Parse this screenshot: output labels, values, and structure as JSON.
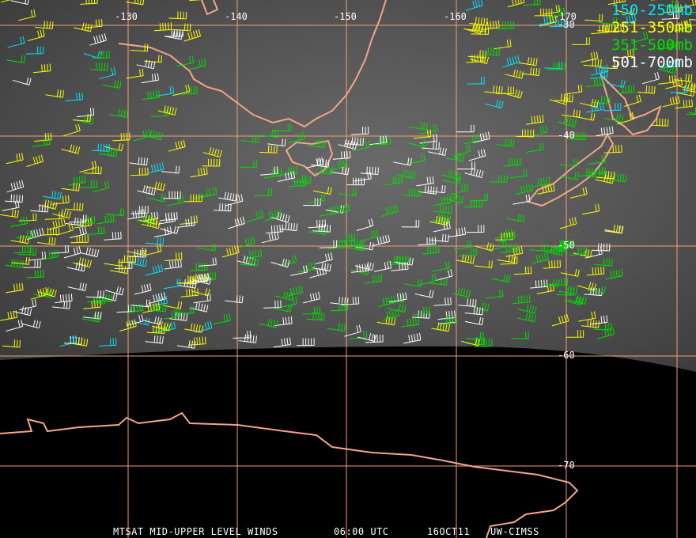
{
  "colors": {
    "grid": "#f0a078",
    "coast": "#f4a58a",
    "background_ocean": "#000000"
  },
  "legend": [
    {
      "label": "150-250mb",
      "color": "#00e5ff"
    },
    {
      "label": "251-350mb",
      "color": "#ffff00"
    },
    {
      "label": "351-500mb",
      "color": "#00e000"
    },
    {
      "label": "501-700mb",
      "color": "#ffffff"
    }
  ],
  "longitude_labels": [
    "-130",
    "-140",
    "-150",
    "-160",
    "-170"
  ],
  "latitude_labels": [
    "-30",
    "-40",
    "-50",
    "-60",
    "-70"
  ],
  "footer": {
    "product": "MTSAT MID-UPPER LEVEL WINDS",
    "time": "06:00 UTC",
    "date": "16OCT11",
    "source": "UW-CIMSS"
  }
}
